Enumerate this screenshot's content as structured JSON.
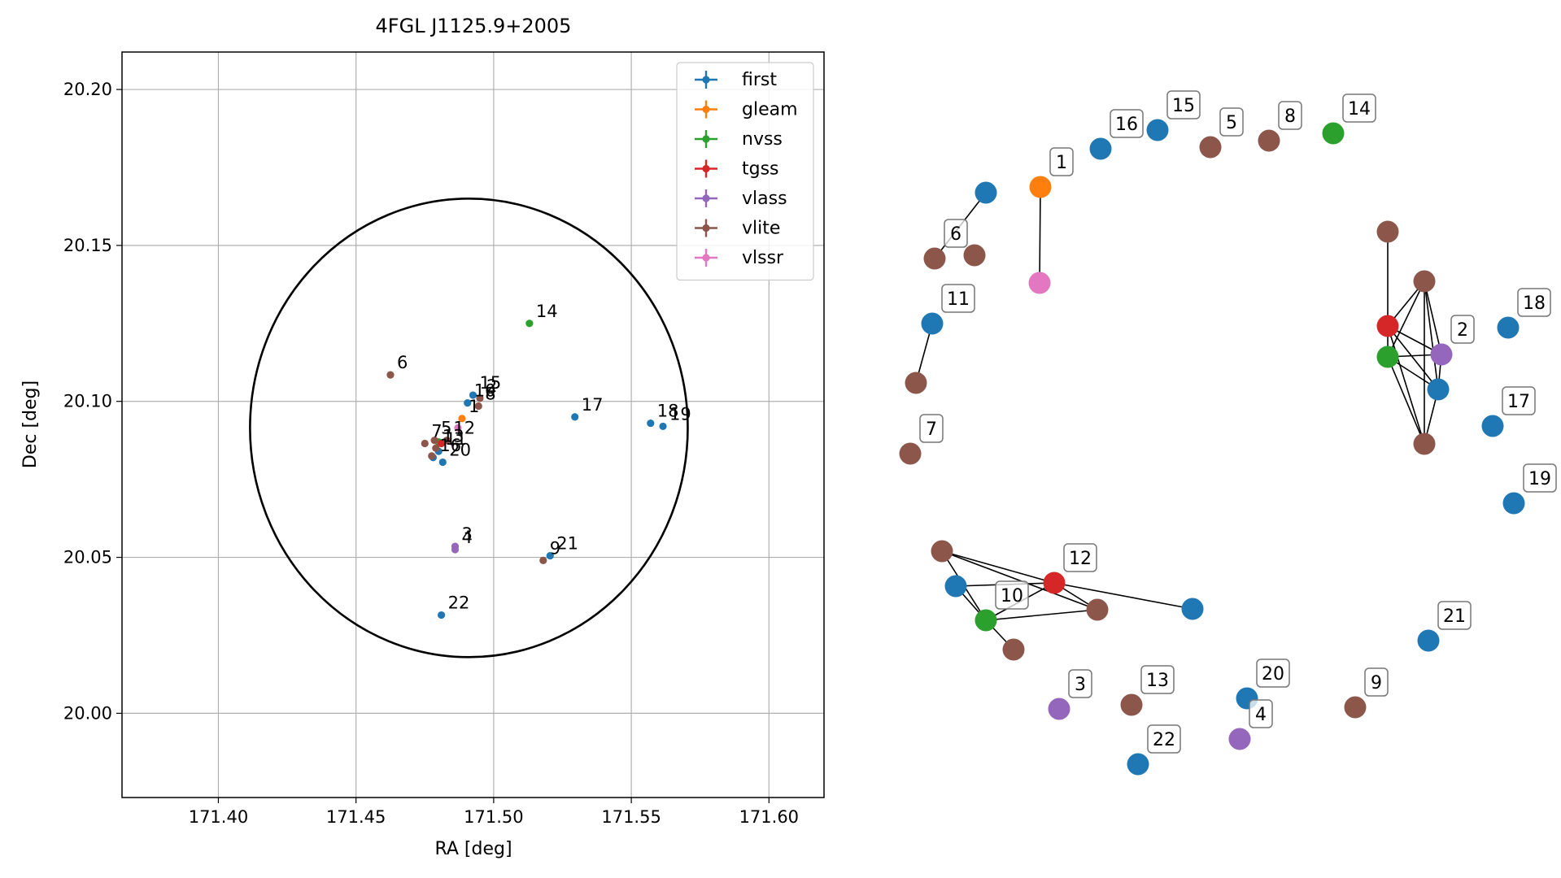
{
  "chart_data": [
    {
      "type": "scatter",
      "title": "4FGL J1125.9+2005",
      "xlabel": "RA [deg]",
      "ylabel": "Dec [deg]",
      "xlim": [
        171.365,
        171.62
      ],
      "ylim": [
        19.973,
        20.212
      ],
      "xticks": [
        "171.40",
        "171.45",
        "171.50",
        "171.55",
        "171.60"
      ],
      "yticks": [
        "20.00",
        "20.05",
        "20.10",
        "20.15",
        "20.20"
      ],
      "grid": true,
      "legend_position": "top-right",
      "error_ellipse": {
        "ra": 171.491,
        "dec": 20.0915,
        "semi_ra": 0.0795,
        "semi_dec": 0.0735
      },
      "series": [
        {
          "name": "first",
          "color": "#1f77b4",
          "points": [
            {
              "label": "10",
              "ra": 171.4905,
              "dec": 20.0995
            },
            {
              "label": "15",
              "ra": 171.4925,
              "dec": 20.102
            },
            {
              "label": "11",
              "ra": 171.48,
              "dec": 20.084
            },
            {
              "label": "16",
              "ra": 171.478,
              "dec": 20.082
            },
            {
              "label": "20",
              "ra": 171.4815,
              "dec": 20.0805
            },
            {
              "label": "17",
              "ra": 171.5295,
              "dec": 20.095
            },
            {
              "label": "18",
              "ra": 171.557,
              "dec": 20.093
            },
            {
              "label": "19",
              "ra": 171.5615,
              "dec": 20.092
            },
            {
              "label": "21",
              "ra": 171.5205,
              "dec": 20.0505
            },
            {
              "label": "22",
              "ra": 171.481,
              "dec": 20.0315
            }
          ]
        },
        {
          "name": "gleam",
          "color": "#ff7f0e",
          "points": [
            {
              "label": "1",
              "ra": 171.4885,
              "dec": 20.0945
            }
          ]
        },
        {
          "name": "nvss",
          "color": "#2ca02c",
          "points": [
            {
              "label": "14",
              "ra": 171.513,
              "dec": 20.125
            },
            {
              "label": "",
              "ra": 171.48,
              "dec": 20.087
            }
          ]
        },
        {
          "name": "tgss",
          "color": "#d62728",
          "points": [
            {
              "label": "",
              "ra": 171.481,
              "dec": 20.0865
            }
          ]
        },
        {
          "name": "vlass",
          "color": "#9467bd",
          "points": [
            {
              "label": "3",
              "ra": 171.486,
              "dec": 20.0535
            },
            {
              "label": "4",
              "ra": 171.486,
              "dec": 20.0525
            }
          ]
        },
        {
          "name": "vlite",
          "color": "#8c564b",
          "points": [
            {
              "label": "6",
              "ra": 171.4625,
              "dec": 20.1085
            },
            {
              "label": "2",
              "ra": 171.495,
              "dec": 20.101
            },
            {
              "label": "8",
              "ra": 171.4945,
              "dec": 20.0985
            },
            {
              "label": "7",
              "ra": 171.475,
              "dec": 20.0865
            },
            {
              "label": "5",
              "ra": 171.4785,
              "dec": 20.0875
            },
            {
              "label": "12",
              "ra": 171.483,
              "dec": 20.0875
            },
            {
              "label": "13",
              "ra": 171.479,
              "dec": 20.085
            },
            {
              "label": "",
              "ra": 171.4775,
              "dec": 20.0825
            },
            {
              "label": "9",
              "ra": 171.518,
              "dec": 20.049
            }
          ]
        },
        {
          "name": "vlssr",
          "color": "#e377c2",
          "points": [
            {
              "label": "",
              "ra": 171.487,
              "dec": 20.0915
            }
          ]
        }
      ]
    },
    {
      "type": "network",
      "nodes": [
        {
          "label": "",
          "color": "#1f77b4"
        },
        {
          "label": "1",
          "color": "#ff7f0e"
        },
        {
          "label": "6",
          "color": "#8c564b"
        },
        {
          "label": "",
          "color": "#8c564b"
        },
        {
          "label": "",
          "color": "#e377c2"
        },
        {
          "label": "11",
          "color": "#1f77b4"
        },
        {
          "label": "",
          "color": "#8c564b"
        },
        {
          "label": "7",
          "color": "#8c564b"
        },
        {
          "label": "16",
          "color": "#1f77b4"
        },
        {
          "label": "15",
          "color": "#1f77b4"
        },
        {
          "label": "5",
          "color": "#8c564b"
        },
        {
          "label": "8",
          "color": "#8c564b"
        },
        {
          "label": "14",
          "color": "#2ca02c"
        },
        {
          "label": "",
          "color": "#8c564b"
        },
        {
          "label": "",
          "color": "#8c564b"
        },
        {
          "label": "",
          "color": "#d62728"
        },
        {
          "label": "",
          "color": "#2ca02c"
        },
        {
          "label": "2",
          "color": "#9467bd"
        },
        {
          "label": "",
          "color": "#1f77b4"
        },
        {
          "label": "",
          "color": "#8c564b"
        },
        {
          "label": "18",
          "color": "#1f77b4"
        },
        {
          "label": "17",
          "color": "#1f77b4"
        },
        {
          "label": "19",
          "color": "#1f77b4"
        },
        {
          "label": "",
          "color": "#8c564b"
        },
        {
          "label": "",
          "color": "#1f77b4"
        },
        {
          "label": "12",
          "color": "#d62728"
        },
        {
          "label": "10",
          "color": "#2ca02c"
        },
        {
          "label": "",
          "color": "#8c564b"
        },
        {
          "label": "",
          "color": "#8c564b"
        },
        {
          "label": "",
          "color": "#1f77b4"
        },
        {
          "label": "21",
          "color": "#1f77b4"
        },
        {
          "label": "3",
          "color": "#9467bd"
        },
        {
          "label": "13",
          "color": "#8c564b"
        },
        {
          "label": "20",
          "color": "#1f77b4"
        },
        {
          "label": "4",
          "color": "#9467bd"
        },
        {
          "label": "9",
          "color": "#8c564b"
        },
        {
          "label": "22",
          "color": "#1f77b4"
        }
      ],
      "edges": [
        [
          0,
          2
        ],
        [
          1,
          4
        ],
        [
          5,
          6
        ],
        [
          13,
          15
        ],
        [
          15,
          16
        ],
        [
          15,
          17
        ],
        [
          15,
          18
        ],
        [
          15,
          19
        ],
        [
          15,
          14
        ],
        [
          16,
          14
        ],
        [
          16,
          17
        ],
        [
          16,
          18
        ],
        [
          16,
          19
        ],
        [
          14,
          17
        ],
        [
          14,
          18
        ],
        [
          14,
          19
        ],
        [
          17,
          18
        ],
        [
          18,
          19
        ],
        [
          23,
          25
        ],
        [
          23,
          27
        ],
        [
          23,
          26
        ],
        [
          24,
          26
        ],
        [
          24,
          25
        ],
        [
          25,
          26
        ],
        [
          25,
          27
        ],
        [
          25,
          29
        ],
        [
          26,
          27
        ],
        [
          26,
          28
        ]
      ]
    }
  ]
}
